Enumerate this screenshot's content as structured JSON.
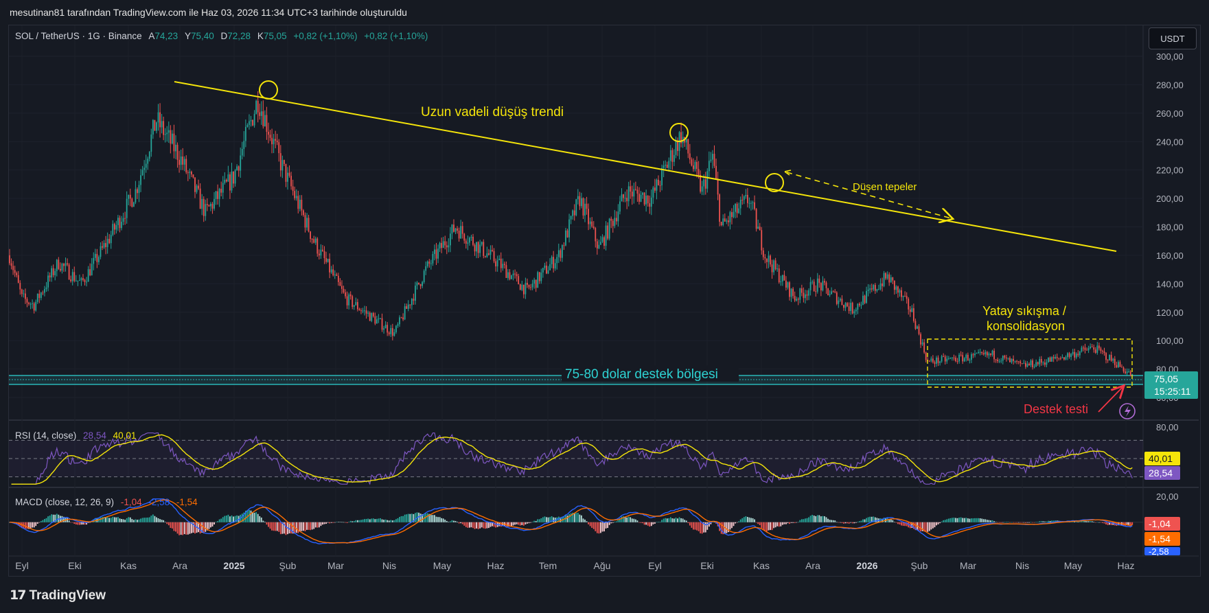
{
  "credit": "mesutinan81 tarafından TradingView.com ile Haz 03, 2026 11:34 UTC+3 tarihinde oluşturuldu",
  "legend": {
    "symbol": "SOL / TetherUS · 1G · Binance",
    "open_label": "A",
    "open": "74,23",
    "high_label": "Y",
    "high": "75,40",
    "low_label": "D",
    "low": "72,28",
    "close_label": "K",
    "close": "75,05",
    "change1": "+0,82 (+1,10%)",
    "change2": "+0,82 (+1,10%)"
  },
  "currency_button": "USDT",
  "price_axis": [
    "300,00",
    "280,00",
    "260,00",
    "240,00",
    "220,00",
    "200,00",
    "180,00",
    "160,00",
    "140,00",
    "120,00",
    "100,00",
    "80,00",
    "60,00"
  ],
  "last_price": {
    "value": "75,05",
    "countdown": "15:25:11"
  },
  "rsi": {
    "label": "RSI (14, close)",
    "rsi_value": "28,54",
    "ma_value": "40,01",
    "axis_top": "80,00",
    "upper_band": 70,
    "lower_band": 30,
    "badge_ma": "40,01",
    "badge_rsi": "28,54"
  },
  "macd": {
    "label": "MACD (close, 12, 26, 9)",
    "hist": "-1,04",
    "macd": "-2,58",
    "signal": "-1,54",
    "axis_top": "20,00",
    "badge_hist": "-1,04",
    "badge_signal": "-1,54",
    "badge_macd": "-2,58"
  },
  "time_axis": [
    "Eyl",
    "Eki",
    "Kas",
    "Ara",
    "2025",
    "Şub",
    "Mar",
    "Nis",
    "May",
    "Haz",
    "Tem",
    "Ağu",
    "Eyl",
    "Eki",
    "Kas",
    "Ara",
    "2026",
    "Şub",
    "Mar",
    "Nis",
    "May",
    "Haz"
  ],
  "annotations": {
    "trend": "Uzun vadeli düşüş trendi",
    "lower_highs": "Düşen tepeler",
    "consolidation_line1": "Yatay sıkışma /",
    "consolidation_line2": "konsolidasyon",
    "support_zone": "75-80 dolar destek bölgesi",
    "support_test": "Destek testi"
  },
  "logo": "TradingView",
  "colors": {
    "up": "#26a69a",
    "down": "#ef5350",
    "trend": "#f5e50a",
    "support": "#2ed3d3",
    "rsi": "#7e57c2",
    "rsi_ma": "#f5e50a",
    "macd": "#2962ff",
    "signal": "#ff6d00",
    "test": "#f23645"
  },
  "chart_data": {
    "type": "candlestick",
    "title": "SOL / TetherUS · 1G · Binance",
    "x_range": [
      "2024-09",
      "2026-06"
    ],
    "ylim": [
      60,
      300
    ],
    "anchor_prices": [
      {
        "x": "2024-08-30",
        "y": 160
      },
      {
        "x": "2024-09-06",
        "y": 130
      },
      {
        "x": "2024-09-13",
        "y": 125
      },
      {
        "x": "2024-09-27",
        "y": 155
      },
      {
        "x": "2024-10-10",
        "y": 140
      },
      {
        "x": "2024-10-25",
        "y": 170
      },
      {
        "x": "2024-11-10",
        "y": 205
      },
      {
        "x": "2024-11-22",
        "y": 255
      },
      {
        "x": "2024-12-05",
        "y": 230
      },
      {
        "x": "2024-12-20",
        "y": 190
      },
      {
        "x": "2025-01-05",
        "y": 215
      },
      {
        "x": "2025-01-19",
        "y": 270
      },
      {
        "x": "2025-02-01",
        "y": 225
      },
      {
        "x": "2025-02-20",
        "y": 170
      },
      {
        "x": "2025-03-10",
        "y": 130
      },
      {
        "x": "2025-04-07",
        "y": 105
      },
      {
        "x": "2025-04-25",
        "y": 150
      },
      {
        "x": "2025-05-12",
        "y": 180
      },
      {
        "x": "2025-06-05",
        "y": 155
      },
      {
        "x": "2025-06-22",
        "y": 135
      },
      {
        "x": "2025-07-10",
        "y": 160
      },
      {
        "x": "2025-07-22",
        "y": 200
      },
      {
        "x": "2025-08-02",
        "y": 165
      },
      {
        "x": "2025-08-18",
        "y": 205
      },
      {
        "x": "2025-09-01",
        "y": 200
      },
      {
        "x": "2025-09-18",
        "y": 245
      },
      {
        "x": "2025-09-30",
        "y": 205
      },
      {
        "x": "2025-10-06",
        "y": 230
      },
      {
        "x": "2025-10-11",
        "y": 180
      },
      {
        "x": "2025-10-27",
        "y": 200
      },
      {
        "x": "2025-11-05",
        "y": 160
      },
      {
        "x": "2025-11-22",
        "y": 130
      },
      {
        "x": "2025-12-05",
        "y": 140
      },
      {
        "x": "2025-12-25",
        "y": 122
      },
      {
        "x": "2026-01-14",
        "y": 145
      },
      {
        "x": "2026-01-28",
        "y": 120
      },
      {
        "x": "2026-02-06",
        "y": 85
      },
      {
        "x": "2026-02-20",
        "y": 87
      },
      {
        "x": "2026-03-15",
        "y": 90
      },
      {
        "x": "2026-04-01",
        "y": 82
      },
      {
        "x": "2026-04-20",
        "y": 87
      },
      {
        "x": "2026-05-12",
        "y": 95
      },
      {
        "x": "2026-05-25",
        "y": 84
      },
      {
        "x": "2026-06-03",
        "y": 75.05
      }
    ],
    "trendline": [
      {
        "x": "2024-11-14",
        "y": 283
      },
      {
        "x": "2026-06-01",
        "y": 165
      }
    ],
    "support_zone": [
      75,
      80
    ],
    "consolidation_box": {
      "x": [
        "2026-02-06",
        "2026-06-07"
      ],
      "y": [
        68,
        103
      ]
    },
    "rsi_range": [
      20,
      80
    ],
    "macd_range": [
      -25,
      20
    ]
  }
}
